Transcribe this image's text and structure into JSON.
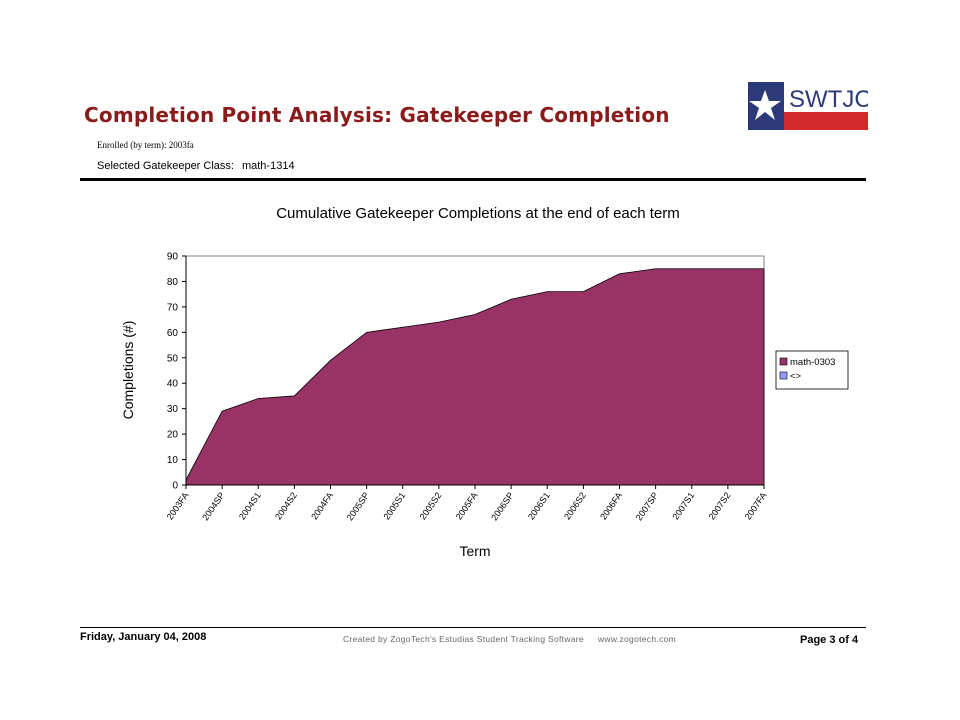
{
  "header": {
    "title": "Completion Point Analysis: Gatekeeper Completion",
    "enrolled_label": "Enrolled (by term): 2003fa",
    "gatekeeper_label": "Selected Gatekeeper Class:",
    "gatekeeper_value": "math-1314",
    "logo_text": "SWTJC"
  },
  "footer": {
    "date": "Friday, January 04, 2008",
    "credit": "Created by ZogoTech's Estudias Student Tracking Software",
    "url": "www.zogotech.com",
    "page": "Page 3 of 4"
  },
  "colors": {
    "title": "#8b1a1a",
    "area_fill": "#993366",
    "legend_series2": "#9999ff"
  },
  "chart_data": {
    "type": "area",
    "title": "Cumulative Gatekeeper Completions at the end of each term",
    "xlabel": "Term",
    "ylabel": "Completions (#)",
    "ylim": [
      0,
      90
    ],
    "yticks": [
      0,
      10,
      20,
      30,
      40,
      50,
      60,
      70,
      80,
      90
    ],
    "categories": [
      "2003FA",
      "2004SP",
      "2004S1",
      "2004S2",
      "2004FA",
      "2005SP",
      "2005S1",
      "2005S2",
      "2005FA",
      "2006SP",
      "2006S1",
      "2006S2",
      "2006FA",
      "2007SP",
      "2007S1",
      "2007S2",
      "2007FA"
    ],
    "series": [
      {
        "name": "math-0303",
        "values": [
          2,
          29,
          34,
          35,
          49,
          60,
          62,
          64,
          67,
          73,
          76,
          76,
          83,
          85,
          85,
          85,
          85
        ]
      }
    ],
    "legend": [
      {
        "name": "math-0303"
      },
      {
        "name": "<>"
      }
    ],
    "legend_position": "right",
    "grid": false
  }
}
